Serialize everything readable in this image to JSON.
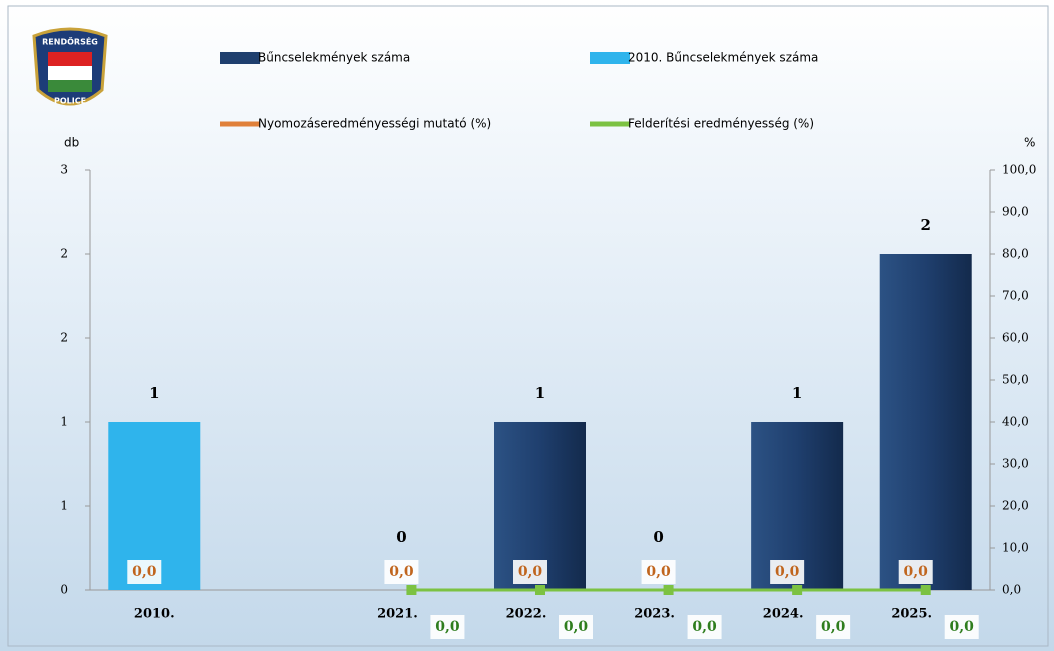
{
  "chart_data": {
    "type": "bar",
    "logo_text": [
      "RENDŐRSÉG",
      "POLICE"
    ],
    "y_label": "db",
    "y2_label": "%",
    "categories": [
      "2010.",
      null,
      "2021.",
      "2022.",
      "2023.",
      "2024.",
      "2025."
    ],
    "ylim": [
      0,
      2.5
    ],
    "yticks": [
      0,
      {
        "value": 0.5,
        "label": "1"
      },
      1,
      {
        "value": 1.5,
        "label": "2"
      },
      2,
      {
        "value": 2.5,
        "label": "3"
      }
    ],
    "y2lim": [
      0,
      100
    ],
    "y2ticks": [
      {
        "value": 0,
        "label": "0,0"
      },
      {
        "value": 10,
        "label": "10,0"
      },
      {
        "value": 20,
        "label": "20,0"
      },
      {
        "value": 30,
        "label": "30,0"
      },
      {
        "value": 40,
        "label": "40,0"
      },
      {
        "value": 50,
        "label": "50,0"
      },
      {
        "value": 60,
        "label": "60,0"
      },
      {
        "value": 70,
        "label": "70,0"
      },
      {
        "value": 80,
        "label": "80,0"
      },
      {
        "value": 90,
        "label": "90,0"
      },
      {
        "value": 100,
        "label": "100,0"
      }
    ],
    "series": [
      {
        "name": "Bűncselekmények száma",
        "kind": "bar",
        "color": "#1f3f6e",
        "values": [
          null,
          null,
          0,
          1,
          0,
          1,
          2
        ]
      },
      {
        "name": "2010. Bűncselekmények száma",
        "kind": "bar",
        "color": "#2fb4ec",
        "values": [
          1,
          null,
          null,
          null,
          null,
          null,
          null
        ]
      },
      {
        "name": "Nyomozáseredményességi mutató (%)",
        "kind": "line",
        "axis": "y2",
        "color": "#e0803a",
        "values": [
          0,
          null,
          0,
          0,
          0,
          0,
          0
        ],
        "value_labels": [
          "0,0",
          null,
          "0,0",
          "0,0",
          "0,0",
          "0,0",
          "0,0"
        ]
      },
      {
        "name": "Felderítési eredményesség (%)",
        "kind": "line",
        "axis": "y2",
        "color": "#7cc242",
        "values": [
          null,
          null,
          0,
          0,
          0,
          0,
          0
        ],
        "value_labels": [
          null,
          null,
          "0,0",
          "0,0",
          "0,0",
          "0,0",
          "0,0"
        ]
      }
    ]
  }
}
